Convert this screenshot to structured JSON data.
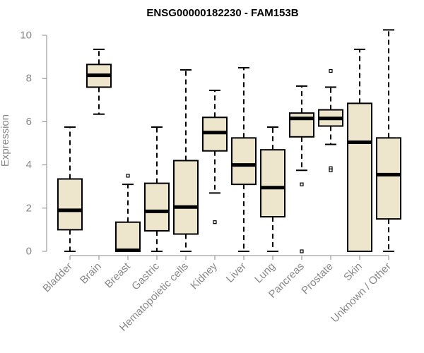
{
  "chart_data": {
    "type": "boxplot",
    "title": "ENSG00000182230 - FAM153B",
    "xlabel": "",
    "ylabel": "Expression",
    "ylim": [
      0,
      10.2
    ],
    "yticks": [
      0,
      2,
      4,
      6,
      8,
      10
    ],
    "grid": false,
    "legend": "none",
    "colors": {
      "box_fill": "#ede6cc",
      "box_stroke": "#000000",
      "median": "#000000",
      "axis": "#888888"
    },
    "categories": [
      "Bladder",
      "Brain",
      "Breast",
      "Gastric",
      "Hematopoietic cells",
      "Kidney",
      "Liver",
      "Lung",
      "Pancreas",
      "Prostate",
      "Skin",
      "Unknown / Other"
    ],
    "boxes": [
      {
        "category": "Bladder",
        "whisker_low": 0.0,
        "q1": 1.0,
        "median": 1.9,
        "q3": 3.35,
        "whisker_high": 5.75,
        "outliers": []
      },
      {
        "category": "Brain",
        "whisker_low": 6.35,
        "q1": 7.6,
        "median": 8.15,
        "q3": 8.65,
        "whisker_high": 9.35,
        "outliers": []
      },
      {
        "category": "Breast",
        "whisker_low": 0.0,
        "q1": 0.0,
        "median": 0.05,
        "q3": 1.35,
        "whisker_high": 3.1,
        "outliers": [
          3.5
        ]
      },
      {
        "category": "Gastric",
        "whisker_low": 0.0,
        "q1": 0.95,
        "median": 1.85,
        "q3": 3.15,
        "whisker_high": 5.75,
        "outliers": []
      },
      {
        "category": "Hematopoietic cells",
        "whisker_low": 0.0,
        "q1": 0.8,
        "median": 2.05,
        "q3": 4.2,
        "whisker_high": 8.4,
        "outliers": []
      },
      {
        "category": "Kidney",
        "whisker_low": 2.7,
        "q1": 4.65,
        "median": 5.5,
        "q3": 6.2,
        "whisker_high": 7.45,
        "outliers": [
          1.35
        ]
      },
      {
        "category": "Liver",
        "whisker_low": 0.0,
        "q1": 3.1,
        "median": 4.0,
        "q3": 5.25,
        "whisker_high": 8.5,
        "outliers": []
      },
      {
        "category": "Lung",
        "whisker_low": 0.0,
        "q1": 1.6,
        "median": 2.95,
        "q3": 4.7,
        "whisker_high": 5.75,
        "outliers": []
      },
      {
        "category": "Pancreas",
        "whisker_low": 3.75,
        "q1": 5.3,
        "median": 6.15,
        "q3": 6.4,
        "whisker_high": 7.65,
        "outliers": [
          3.1,
          0.0
        ]
      },
      {
        "category": "Prostate",
        "whisker_low": 4.95,
        "q1": 5.8,
        "median": 6.15,
        "q3": 6.55,
        "whisker_high": 7.6,
        "outliers": [
          8.35,
          3.85,
          3.75
        ]
      },
      {
        "category": "Skin",
        "whisker_low": 0.0,
        "q1": 0.0,
        "median": 5.05,
        "q3": 6.85,
        "whisker_high": 9.35,
        "outliers": []
      },
      {
        "category": "Unknown / Other",
        "whisker_low": 0.0,
        "q1": 1.5,
        "median": 3.55,
        "q3": 5.25,
        "whisker_high": 10.25,
        "outliers": []
      }
    ]
  }
}
